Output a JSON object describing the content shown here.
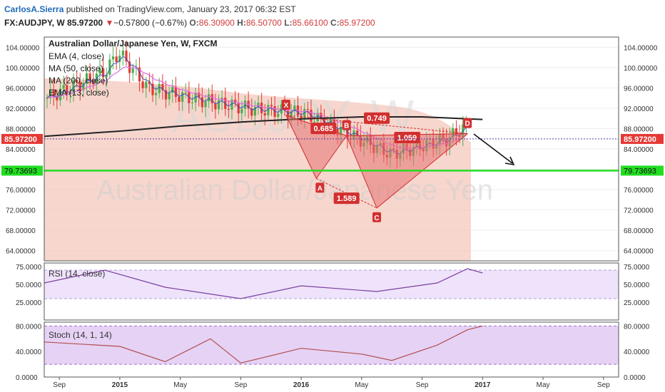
{
  "header": {
    "author": "CarlosA.Sierra",
    "published": "published on TradingView.com, January 23, 2017 06:32 EST",
    "symbol": "FX:AUDJPY, W",
    "last": "85.97200",
    "change_arrow": "▼",
    "change": "−0.57800 (−0.67%)",
    "o_label": "O:",
    "o_value": "86.30900",
    "h_label": "H:",
    "h_value": "86.50700",
    "l_label": "L:",
    "l_value": "85.66100",
    "c_label": "C:",
    "c_value": "85.97200"
  },
  "legend": {
    "title": "Australian Dollar/Japanese Yen, W, FXCM",
    "ema4": "EMA (4, close)",
    "ma50": "MA (50, close)",
    "ma200": "MA (200, close)",
    "ema13": "EMA (13, close)"
  },
  "watermark": {
    "symbol": "AUDJPY, W",
    "name": "Australian Dollar/Japanese Yen"
  },
  "panes": {
    "rsi_label": "RSI (14, close)",
    "stoch_label": "Stoch (14, 1, 14)"
  },
  "price_axis": {
    "ticks": [
      "104.00000",
      "100.00000",
      "96.00000",
      "92.00000",
      "88.00000",
      "84.00000",
      "80.00000",
      "76.00000",
      "72.00000",
      "68.00000",
      "64.00000"
    ],
    "rsi_ticks": [
      "75.0000",
      "50.0000",
      "25.0000"
    ],
    "stoch_ticks": [
      "80.0000",
      "40.0000",
      "0.0000"
    ],
    "last_price_label": "85.97200",
    "support_label": "79.73693"
  },
  "time_axis": {
    "ticks": [
      "Sep",
      "2015",
      "May",
      "Sep",
      "2016",
      "May",
      "Sep",
      "2017",
      "May",
      "Sep"
    ]
  },
  "pattern": {
    "points": [
      "X",
      "A",
      "B",
      "C",
      "D"
    ],
    "ratios": [
      "0.685",
      "0.749",
      "1.059",
      "1.589"
    ]
  },
  "colors": {
    "up": "#4caf50",
    "down": "#e53935",
    "support": "#22dd22",
    "ma200": "#222222",
    "pattern_fill": "#e57373",
    "pattern_label": "#d32f2f",
    "rsi": "#7b3fa0",
    "stoch": "#b05050",
    "last_price": "#e53935"
  },
  "chart_data": [
    {
      "type": "line",
      "title": "Australian Dollar/Japanese Yen, W, FXCM",
      "x_range": [
        "2014-08",
        "2017-10"
      ],
      "ylim": [
        62,
        106
      ],
      "y_ticks": [
        104,
        100,
        96,
        92,
        88,
        84,
        80,
        76,
        72,
        68,
        64
      ],
      "last_price": 85.972,
      "support_level": 79.73693,
      "series": [
        {
          "name": "MA (200, close)",
          "x": [
            "2014-08",
            "2015-01",
            "2015-05",
            "2015-09",
            "2016-01",
            "2016-05",
            "2016-09",
            "2017-01"
          ],
          "values": [
            86.5,
            87.5,
            88.5,
            89.3,
            89.9,
            90.3,
            90.3,
            89.8
          ]
        }
      ],
      "harmonic_pattern": {
        "points": [
          {
            "label": "X",
            "date": "2015-12",
            "value": 90.6
          },
          {
            "label": "A",
            "date": "2016-02",
            "value": 78.2
          },
          {
            "label": "B",
            "date": "2016-04",
            "value": 86.6
          },
          {
            "label": "C",
            "date": "2016-06",
            "value": 72.4
          },
          {
            "label": "D",
            "date": "2016-12",
            "value": 87.0
          }
        ],
        "ratios": [
          0.685,
          0.749,
          1.059,
          1.589
        ]
      },
      "grid": true
    },
    {
      "type": "line",
      "title": "RSI (14, close)",
      "ylim": [
        0,
        80
      ],
      "y_ticks": [
        75,
        50,
        25
      ],
      "series": [
        {
          "name": "RSI (14, close)",
          "x": [
            "2014-08",
            "2014-12",
            "2015-04",
            "2015-09",
            "2016-01",
            "2016-06",
            "2016-10",
            "2016-12",
            "2017-01"
          ],
          "values": [
            52,
            70,
            46,
            30,
            48,
            40,
            52,
            72,
            66
          ]
        }
      ]
    },
    {
      "type": "line",
      "title": "Stoch (14, 1, 14)",
      "ylim": [
        0,
        86
      ],
      "y_ticks": [
        80,
        40,
        0
      ],
      "series": [
        {
          "name": "Stoch (14, 1, 14)",
          "x": [
            "2014-08",
            "2015-01",
            "2015-04",
            "2015-07",
            "2015-09",
            "2016-01",
            "2016-05",
            "2016-07",
            "2016-10",
            "2016-12",
            "2017-01"
          ],
          "values": [
            55,
            48,
            24,
            60,
            22,
            45,
            36,
            26,
            50,
            74,
            80
          ]
        }
      ]
    }
  ]
}
